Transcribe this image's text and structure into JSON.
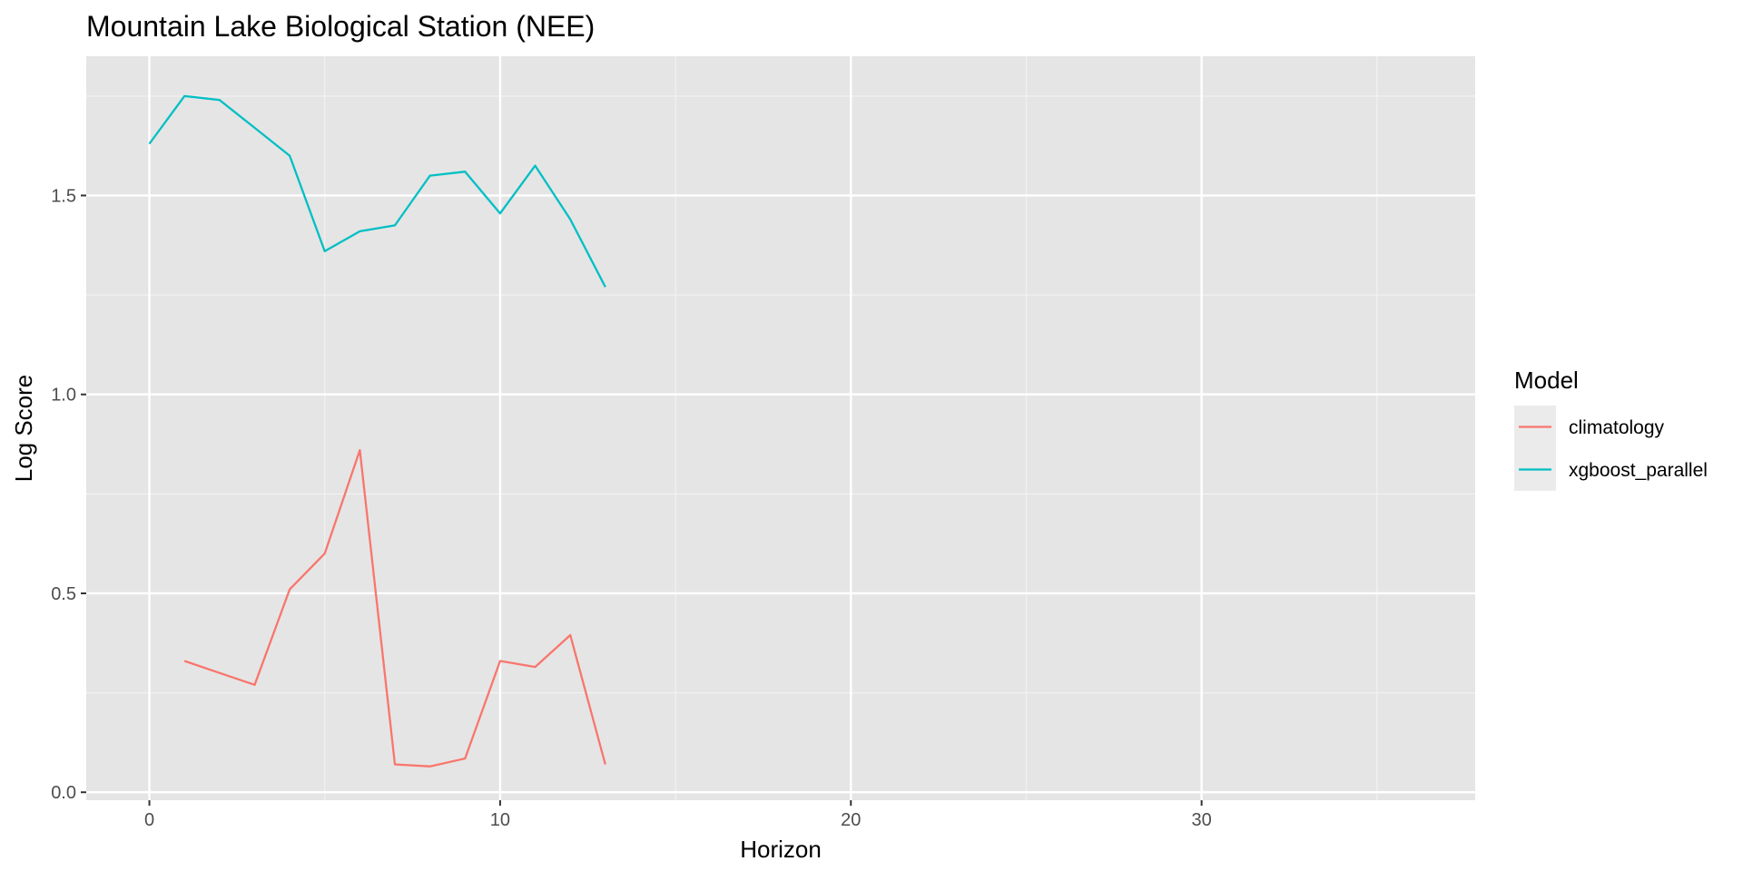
{
  "chart_data": {
    "type": "line",
    "title": "Mountain Lake Biological Station (NEE)",
    "xlabel": "Horizon",
    "ylabel": "Log Score",
    "xlim": [
      -1.8,
      37.8
    ],
    "ylim": [
      -0.02,
      1.85
    ],
    "x_ticks": [
      {
        "value": 0,
        "label": "0"
      },
      {
        "value": 10,
        "label": "10"
      },
      {
        "value": 20,
        "label": "20"
      },
      {
        "value": 30,
        "label": "30"
      }
    ],
    "y_ticks": [
      {
        "value": 0.0,
        "label": "0.0"
      },
      {
        "value": 0.5,
        "label": "0.5"
      },
      {
        "value": 1.0,
        "label": "1.0"
      },
      {
        "value": 1.5,
        "label": "1.5"
      }
    ],
    "x_minor": [
      5,
      15,
      25,
      35
    ],
    "y_minor": [
      0.25,
      0.75,
      1.25,
      1.75
    ],
    "grid": true,
    "legend": {
      "title": "Model",
      "position": "right"
    },
    "series": [
      {
        "name": "climatology",
        "color": "#F8766D",
        "x": [
          1,
          2,
          3,
          4,
          5,
          6,
          7,
          8,
          9,
          10,
          11,
          12,
          13
        ],
        "y": [
          0.33,
          0.3,
          0.27,
          0.51,
          0.6,
          0.86,
          0.07,
          0.065,
          0.085,
          0.33,
          0.315,
          0.395,
          0.07
        ]
      },
      {
        "name": "xgboost_parallel",
        "color": "#00BFC4",
        "x": [
          0,
          1,
          2,
          3,
          4,
          5,
          6,
          7,
          8,
          9,
          10,
          11,
          12,
          13
        ],
        "y": [
          1.63,
          1.75,
          1.74,
          1.67,
          1.6,
          1.36,
          1.41,
          1.425,
          1.55,
          1.56,
          1.455,
          1.575,
          1.44,
          1.27
        ]
      }
    ]
  }
}
